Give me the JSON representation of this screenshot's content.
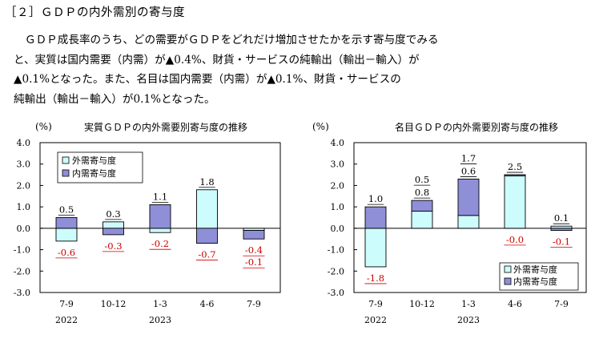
{
  "section": {
    "title": "［２］ＧＤＰの内外需別の寄与度",
    "paragraph_lines": [
      "ＧＤＰ成長率のうち、どの需要がＧＤＰをどれだけ増加させたかを示す寄与度でみる",
      "と、実質は国内需要（内需）が▲0.4%、財貨・サービスの純輸出（輸出－輸入）が",
      "▲0.1%となった。また、名目は国内需要（内需）が▲0.1%、財貨・サービスの",
      "純輸出（輸出－輸入）が0.1%となった。"
    ]
  },
  "colors": {
    "domestic": "#8f8fd8",
    "external": "#ccfcfc",
    "negative_label": "#cc0000",
    "positive_label": "#000000"
  },
  "chart_data": [
    {
      "type": "bar",
      "stacked": true,
      "title": "実質ＧＤＰの内外需要別寄与度の推移",
      "ylabel": "(%)",
      "ylim": [
        -3.0,
        4.0
      ],
      "yticks": [
        "4.0",
        "3.0",
        "2.0",
        "1.0",
        "0.0",
        "-1.0",
        "-2.0",
        "-3.0"
      ],
      "categories": [
        "7-9",
        "10-12",
        "1-3",
        "4-6",
        "7-9"
      ],
      "years": [
        "2022",
        "",
        "2023",
        "",
        ""
      ],
      "series": [
        {
          "name": "外需寄与度",
          "key": "external",
          "values": [
            -0.6,
            0.3,
            -0.2,
            1.8,
            -0.1
          ]
        },
        {
          "name": "内需寄与度",
          "key": "domestic",
          "values": [
            0.5,
            -0.3,
            1.1,
            -0.7,
            -0.4
          ]
        }
      ],
      "labels": [
        {
          "text": "0.5",
          "value": 0.5,
          "cat": 0,
          "pos": "top"
        },
        {
          "text": "-0.6",
          "value": -0.6,
          "cat": 0,
          "pos": "bottom"
        },
        {
          "text": "0.3",
          "value": 0.3,
          "cat": 1,
          "pos": "top"
        },
        {
          "text": "-0.3",
          "value": -0.3,
          "cat": 1,
          "pos": "bottom"
        },
        {
          "text": "1.1",
          "value": 1.1,
          "cat": 2,
          "pos": "top"
        },
        {
          "text": "-0.2",
          "value": -0.2,
          "cat": 2,
          "pos": "bottom"
        },
        {
          "text": "1.8",
          "value": 1.8,
          "cat": 3,
          "pos": "top"
        },
        {
          "text": "-0.7",
          "value": -0.7,
          "cat": 3,
          "pos": "bottom"
        },
        {
          "text": "-0.4",
          "value": -0.4,
          "cat": 4,
          "pos": "bottom"
        },
        {
          "text": "-0.1",
          "value": -0.1,
          "cat": 4,
          "pos": "bottom"
        }
      ],
      "legend_position": "top-left"
    },
    {
      "type": "bar",
      "stacked": true,
      "title": "名目ＧＤＰの内外需要別寄与度の推移",
      "ylabel": "(%)",
      "ylim": [
        -3.0,
        4.0
      ],
      "yticks": [
        "4.0",
        "3.0",
        "2.0",
        "1.0",
        "0.0",
        "-1.0",
        "-2.0",
        "-3.0"
      ],
      "categories": [
        "7-9",
        "10-12",
        "1-3",
        "4-6",
        "7-9"
      ],
      "years": [
        "2022",
        "",
        "2023",
        "",
        ""
      ],
      "series": [
        {
          "name": "外需寄与度",
          "key": "external",
          "values": [
            -1.8,
            0.8,
            0.6,
            2.5,
            0.1
          ]
        },
        {
          "name": "内需寄与度",
          "key": "domestic",
          "values": [
            1.0,
            0.5,
            1.7,
            -0.0,
            -0.1
          ]
        }
      ],
      "labels": [
        {
          "text": "1.0",
          "value": 1.0,
          "cat": 0,
          "pos": "top"
        },
        {
          "text": "-1.8",
          "value": -1.8,
          "cat": 0,
          "pos": "bottom"
        },
        {
          "text": "0.8",
          "value": 0.8,
          "cat": 1,
          "pos": "top"
        },
        {
          "text": "0.5",
          "value": 0.5,
          "cat": 1,
          "pos": "top"
        },
        {
          "text": "0.6",
          "value": 0.6,
          "cat": 2,
          "pos": "top"
        },
        {
          "text": "1.7",
          "value": 1.7,
          "cat": 2,
          "pos": "top"
        },
        {
          "text": "2.5",
          "value": 2.5,
          "cat": 3,
          "pos": "top"
        },
        {
          "text": "-0.0",
          "value": -0.0,
          "cat": 3,
          "pos": "bottom"
        },
        {
          "text": "0.1",
          "value": 0.1,
          "cat": 4,
          "pos": "top"
        },
        {
          "text": "-0.1",
          "value": -0.1,
          "cat": 4,
          "pos": "bottom"
        }
      ],
      "legend_position": "bottom-right"
    }
  ]
}
